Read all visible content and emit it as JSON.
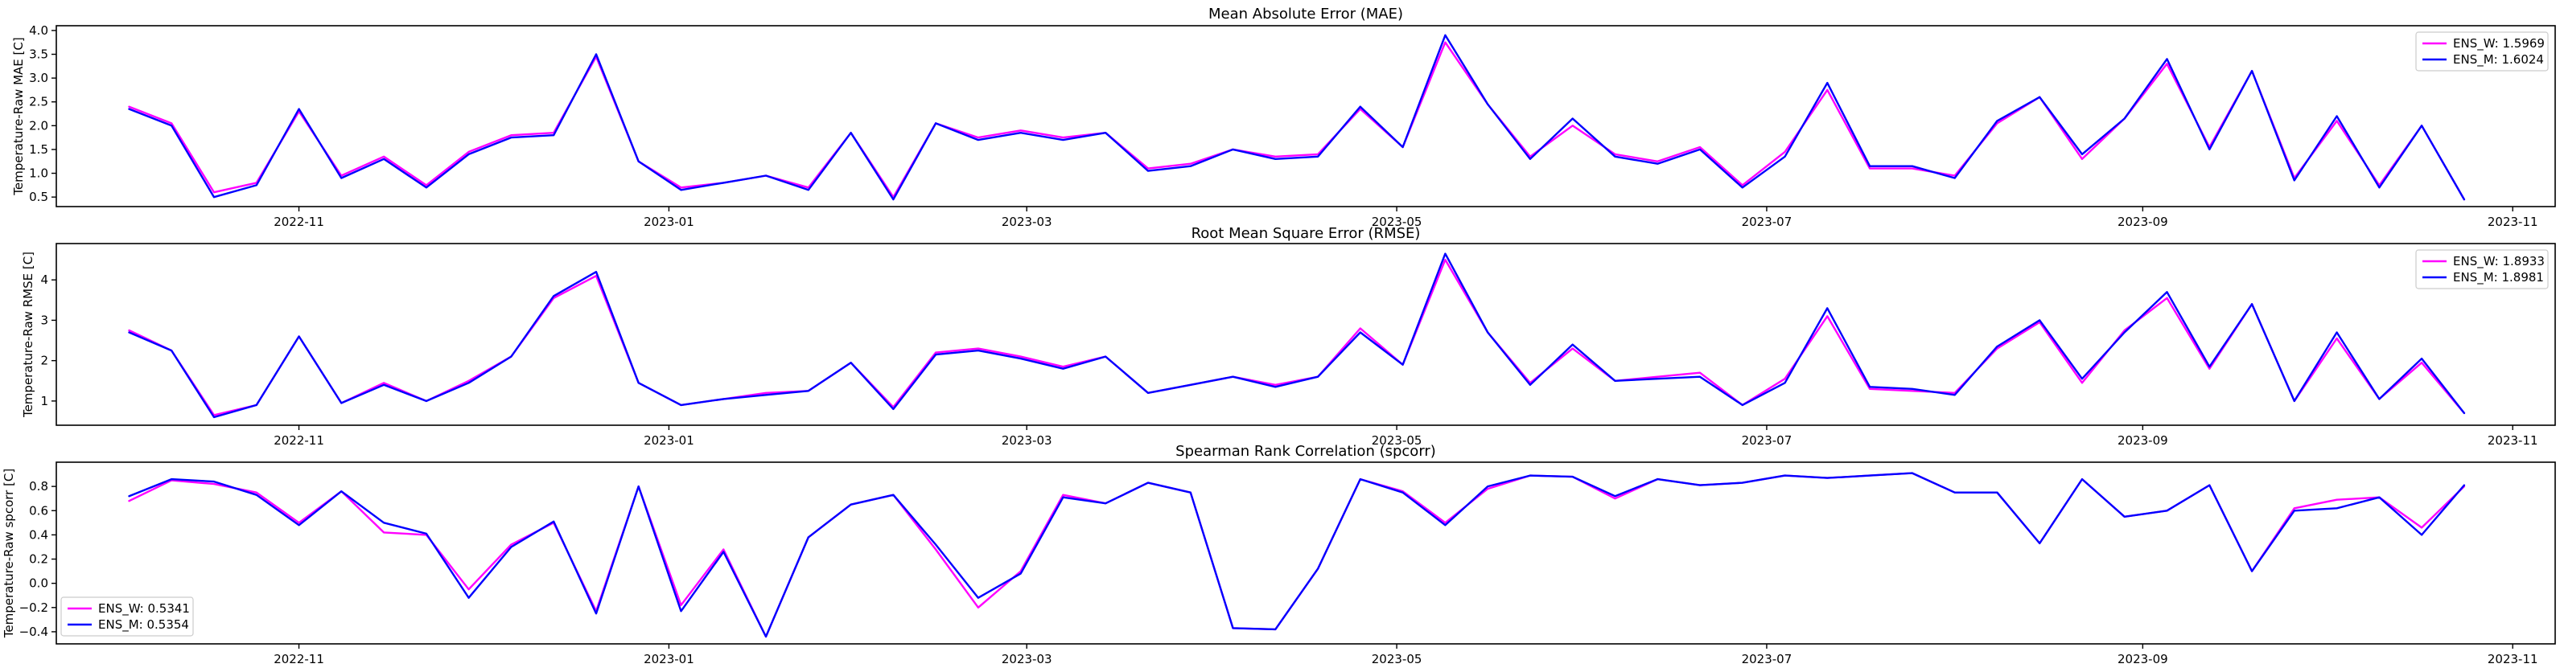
{
  "colors": {
    "ens_w": "#ff00ff",
    "ens_m": "#0000ff"
  },
  "chart_data": [
    {
      "type": "line",
      "title": "Mean Absolute Error (MAE)",
      "xlabel": "",
      "ylabel": "Temperature-Raw MAE [C]",
      "x_start": "2022-10-04",
      "x_step_days": 7,
      "xlim": [
        "2022-09-22",
        "2023-11-08"
      ],
      "xticks": [
        "2022-11-01",
        "2023-01-01",
        "2023-03-01",
        "2023-05-01",
        "2023-07-01",
        "2023-09-01",
        "2023-11-01"
      ],
      "xtick_labels": [
        "2022-11",
        "2023-01",
        "2023-03",
        "2023-05",
        "2023-07",
        "2023-09",
        "2023-11"
      ],
      "ylim": [
        0.3,
        4.1
      ],
      "yticks": [
        0.5,
        1.0,
        1.5,
        2.0,
        2.5,
        3.0,
        3.5,
        4.0
      ],
      "ytick_labels": [
        "0.5",
        "1.0",
        "1.5",
        "2.0",
        "2.5",
        "3.0",
        "3.5",
        "4.0"
      ],
      "legend_position": "upper-right",
      "series": [
        {
          "name": "ENS_W: 1.5969",
          "color": "ens_w",
          "values": [
            2.4,
            2.05,
            0.6,
            0.8,
            2.3,
            0.95,
            1.35,
            0.75,
            1.45,
            1.8,
            1.85,
            3.45,
            1.25,
            0.7,
            0.8,
            0.95,
            0.7,
            1.85,
            0.5,
            2.05,
            1.75,
            1.9,
            1.75,
            1.85,
            1.1,
            1.2,
            1.5,
            1.35,
            1.4,
            2.35,
            1.55,
            3.75,
            2.45,
            1.35,
            2.0,
            1.4,
            1.25,
            1.55,
            0.75,
            1.45,
            2.75,
            1.1,
            1.1,
            0.95,
            2.05,
            2.6,
            1.3,
            2.15,
            3.3,
            1.55,
            3.15,
            0.9,
            2.1,
            0.75,
            2.0,
            0.45
          ]
        },
        {
          "name": "ENS_M: 1.6024",
          "color": "ens_m",
          "values": [
            2.35,
            2.0,
            0.5,
            0.75,
            2.35,
            0.9,
            1.3,
            0.7,
            1.4,
            1.75,
            1.8,
            3.5,
            1.25,
            0.65,
            0.8,
            0.95,
            0.65,
            1.85,
            0.45,
            2.05,
            1.7,
            1.85,
            1.7,
            1.85,
            1.05,
            1.15,
            1.5,
            1.3,
            1.35,
            2.4,
            1.55,
            3.9,
            2.45,
            1.3,
            2.15,
            1.35,
            1.2,
            1.5,
            0.7,
            1.35,
            2.9,
            1.15,
            1.15,
            0.9,
            2.1,
            2.6,
            1.4,
            2.15,
            3.4,
            1.5,
            3.15,
            0.85,
            2.2,
            0.7,
            2.0,
            0.45
          ]
        }
      ]
    },
    {
      "type": "line",
      "title": "Root Mean Square Error (RMSE)",
      "xlabel": "",
      "ylabel": "Temperature-Raw RMSE [C]",
      "x_start": "2022-10-04",
      "x_step_days": 7,
      "xlim": [
        "2022-09-22",
        "2023-11-08"
      ],
      "xticks": [
        "2022-11-01",
        "2023-01-01",
        "2023-03-01",
        "2023-05-01",
        "2023-07-01",
        "2023-09-01",
        "2023-11-01"
      ],
      "xtick_labels": [
        "2022-11",
        "2023-01",
        "2023-03",
        "2023-05",
        "2023-07",
        "2023-09",
        "2023-11"
      ],
      "ylim": [
        0.4,
        4.9
      ],
      "yticks": [
        1,
        2,
        3,
        4
      ],
      "ytick_labels": [
        "1",
        "2",
        "3",
        "4"
      ],
      "legend_position": "upper-right",
      "series": [
        {
          "name": "ENS_W: 1.8933",
          "color": "ens_w",
          "values": [
            2.75,
            2.25,
            0.65,
            0.9,
            2.6,
            0.95,
            1.45,
            1.0,
            1.5,
            2.1,
            3.55,
            4.1,
            1.45,
            0.9,
            1.05,
            1.2,
            1.25,
            1.95,
            0.85,
            2.2,
            2.3,
            2.1,
            1.85,
            2.1,
            1.2,
            1.4,
            1.6,
            1.4,
            1.6,
            2.8,
            1.9,
            4.5,
            2.7,
            1.45,
            2.3,
            1.5,
            1.6,
            1.7,
            0.9,
            1.55,
            3.1,
            1.3,
            1.25,
            1.2,
            2.3,
            2.95,
            1.45,
            2.75,
            3.55,
            1.8,
            3.4,
            1.0,
            2.55,
            1.05,
            1.95,
            0.7
          ]
        },
        {
          "name": "ENS_M: 1.8981",
          "color": "ens_m",
          "values": [
            2.7,
            2.25,
            0.6,
            0.9,
            2.6,
            0.95,
            1.4,
            1.0,
            1.45,
            2.1,
            3.6,
            4.2,
            1.45,
            0.9,
            1.05,
            1.15,
            1.25,
            1.95,
            0.8,
            2.15,
            2.25,
            2.05,
            1.8,
            2.1,
            1.2,
            1.4,
            1.6,
            1.35,
            1.6,
            2.7,
            1.9,
            4.65,
            2.7,
            1.4,
            2.4,
            1.5,
            1.55,
            1.6,
            0.9,
            1.45,
            3.3,
            1.35,
            1.3,
            1.15,
            2.35,
            3.0,
            1.55,
            2.7,
            3.7,
            1.85,
            3.4,
            1.0,
            2.7,
            1.05,
            2.05,
            0.7
          ]
        }
      ]
    },
    {
      "type": "line",
      "title": "Spearman Rank Correlation (spcorr)",
      "xlabel": "",
      "ylabel": "Temperature-Raw spcorr [C]",
      "x_start": "2022-10-04",
      "x_step_days": 7,
      "xlim": [
        "2022-09-22",
        "2023-11-08"
      ],
      "xticks": [
        "2022-11-01",
        "2023-01-01",
        "2023-03-01",
        "2023-05-01",
        "2023-07-01",
        "2023-09-01",
        "2023-11-01"
      ],
      "xtick_labels": [
        "2022-11",
        "2023-01",
        "2023-03",
        "2023-05",
        "2023-07",
        "2023-09",
        "2023-11"
      ],
      "ylim": [
        -0.5,
        1.0
      ],
      "yticks": [
        -0.4,
        -0.2,
        0.0,
        0.2,
        0.4,
        0.6,
        0.8
      ],
      "ytick_labels": [
        "−0.4",
        "−0.2",
        "0.0",
        "0.2",
        "0.4",
        "0.6",
        "0.8"
      ],
      "legend_position": "lower-left",
      "series": [
        {
          "name": "ENS_W: 0.5341",
          "color": "ens_w",
          "values": [
            0.68,
            0.85,
            0.82,
            0.75,
            0.5,
            0.76,
            0.42,
            0.4,
            -0.05,
            0.32,
            0.5,
            -0.23,
            0.8,
            -0.18,
            0.28,
            -0.44,
            0.38,
            0.65,
            0.73,
            0.28,
            -0.2,
            0.1,
            0.73,
            0.66,
            0.83,
            0.75,
            -0.37,
            -0.38,
            0.12,
            0.86,
            0.76,
            0.5,
            0.78,
            0.89,
            0.88,
            0.7,
            0.86,
            0.81,
            0.83,
            0.89,
            0.87,
            0.89,
            0.91,
            0.75,
            0.75,
            0.33,
            0.86,
            0.55,
            0.6,
            0.81,
            0.1,
            0.62,
            0.69,
            0.71,
            0.46,
            0.8
          ]
        },
        {
          "name": "ENS_M: 0.5354",
          "color": "ens_m",
          "values": [
            0.72,
            0.86,
            0.84,
            0.73,
            0.48,
            0.76,
            0.5,
            0.41,
            -0.12,
            0.3,
            0.51,
            -0.25,
            0.8,
            -0.23,
            0.26,
            -0.44,
            0.38,
            0.65,
            0.73,
            0.32,
            -0.12,
            0.08,
            0.71,
            0.66,
            0.83,
            0.75,
            -0.37,
            -0.38,
            0.12,
            0.86,
            0.75,
            0.48,
            0.8,
            0.89,
            0.88,
            0.72,
            0.86,
            0.81,
            0.83,
            0.89,
            0.87,
            0.89,
            0.91,
            0.75,
            0.75,
            0.33,
            0.86,
            0.55,
            0.6,
            0.81,
            0.1,
            0.6,
            0.62,
            0.71,
            0.4,
            0.81
          ]
        }
      ]
    }
  ]
}
